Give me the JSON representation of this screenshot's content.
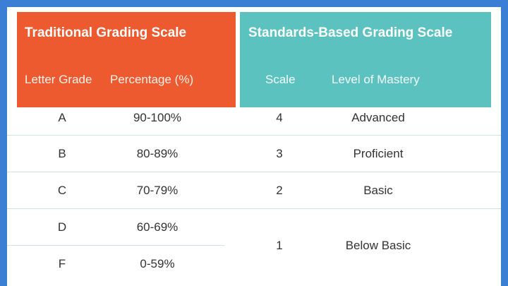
{
  "traditional": {
    "title": "Traditional Grading Scale",
    "col_letter": "Letter Grade",
    "col_percentage": "Percentage (%)"
  },
  "standards": {
    "title": "Standards-Based Grading Scale",
    "col_scale": "Scale",
    "col_level": "Level of Mastery"
  },
  "rows": [
    {
      "letter": "A",
      "percentage": "90-100%",
      "scale": "4",
      "level": "Advanced"
    },
    {
      "letter": "B",
      "percentage": "80-89%",
      "scale": "3",
      "level": "Proficient"
    },
    {
      "letter": "C",
      "percentage": "70-79%",
      "scale": "2",
      "level": "Basic"
    },
    {
      "letter": "D",
      "percentage": "60-69%"
    },
    {
      "letter": "F",
      "percentage": "0-59%"
    }
  ],
  "merged": {
    "scale": "1",
    "level": "Below Basic"
  },
  "colors": {
    "traditional_header": "#ee5a2f",
    "standards_header": "#5cc2bf",
    "border": "#3a7fd5"
  }
}
